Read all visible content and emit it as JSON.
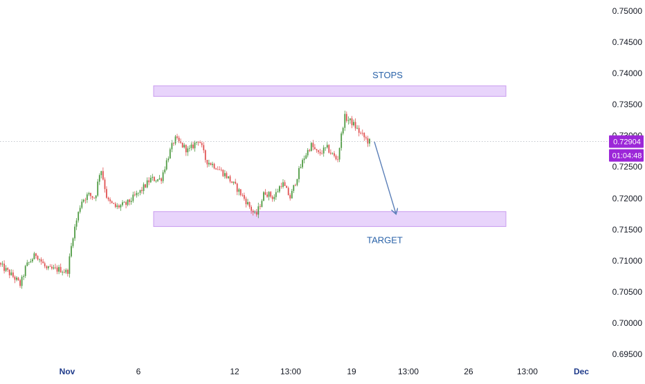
{
  "chart_data": {
    "type": "candlestick",
    "y_axis": {
      "ylim": [
        0.6945,
        0.7525
      ],
      "ticks": [
        "0.75000",
        "0.74500",
        "0.74000",
        "0.73500",
        "0.73000",
        "0.72500",
        "0.72000",
        "0.71500",
        "0.71000",
        "0.70500",
        "0.70000",
        "0.69500"
      ]
    },
    "x_axis": {
      "ticks": [
        {
          "label": "Nov",
          "month": true
        },
        {
          "label": "6",
          "month": false
        },
        {
          "label": "12",
          "month": false
        },
        {
          "label": "13:00",
          "month": false
        },
        {
          "label": "19",
          "month": false
        },
        {
          "label": "13:00",
          "month": false
        },
        {
          "label": "26",
          "month": false
        },
        {
          "label": "13:00",
          "month": false
        },
        {
          "label": "Dec",
          "month": true
        }
      ]
    },
    "price_anchors": [
      [
        0,
        0.7095
      ],
      [
        25,
        0.707
      ],
      [
        32,
        0.706
      ],
      [
        40,
        0.709
      ],
      [
        55,
        0.711
      ],
      [
        70,
        0.7085
      ],
      [
        90,
        0.7085
      ],
      [
        100,
        0.708
      ],
      [
        108,
        0.714
      ],
      [
        120,
        0.7195
      ],
      [
        130,
        0.7205
      ],
      [
        140,
        0.72
      ],
      [
        148,
        0.725
      ],
      [
        158,
        0.7195
      ],
      [
        170,
        0.7185
      ],
      [
        185,
        0.719
      ],
      [
        205,
        0.721
      ],
      [
        220,
        0.723
      ],
      [
        235,
        0.723
      ],
      [
        245,
        0.7265
      ],
      [
        255,
        0.7295
      ],
      [
        275,
        0.7275
      ],
      [
        290,
        0.7295
      ],
      [
        300,
        0.726
      ],
      [
        315,
        0.725
      ],
      [
        330,
        0.7235
      ],
      [
        345,
        0.7215
      ],
      [
        358,
        0.7195
      ],
      [
        372,
        0.717
      ],
      [
        385,
        0.721
      ],
      [
        398,
        0.72
      ],
      [
        410,
        0.7225
      ],
      [
        422,
        0.72
      ],
      [
        432,
        0.7235
      ],
      [
        442,
        0.7265
      ],
      [
        452,
        0.7285
      ],
      [
        462,
        0.727
      ],
      [
        475,
        0.728
      ],
      [
        490,
        0.726
      ],
      [
        500,
        0.733
      ],
      [
        512,
        0.732
      ],
      [
        522,
        0.7305
      ],
      [
        535,
        0.729
      ]
    ],
    "zones": [
      {
        "label": "STOPS",
        "from": 0.7363,
        "to": 0.738
      },
      {
        "label": "TARGET",
        "from": 0.7154,
        "to": 0.7178
      }
    ],
    "projection": {
      "from_price": 0.729,
      "to_price": 0.7175
    },
    "last_price": "0.72904",
    "countdown": "01:04:48",
    "colors": {
      "up": "#4e9a42",
      "down": "#e05252",
      "zone_fill": "#e8d4fb",
      "zone_stroke": "#c99bef",
      "arrow": "#5b7fb8",
      "price_tag": "#9c27d8"
    }
  }
}
